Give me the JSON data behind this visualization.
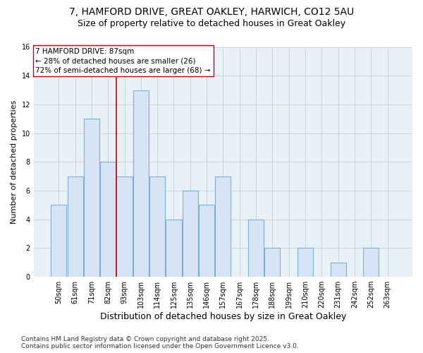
{
  "title_line1": "7, HAMFORD DRIVE, GREAT OAKLEY, HARWICH, CO12 5AU",
  "title_line2": "Size of property relative to detached houses in Great Oakley",
  "xlabel": "Distribution of detached houses by size in Great Oakley",
  "ylabel": "Number of detached properties",
  "bar_labels": [
    "50sqm",
    "61sqm",
    "71sqm",
    "82sqm",
    "93sqm",
    "103sqm",
    "114sqm",
    "125sqm",
    "135sqm",
    "146sqm",
    "157sqm",
    "167sqm",
    "178sqm",
    "188sqm",
    "199sqm",
    "210sqm",
    "220sqm",
    "231sqm",
    "242sqm",
    "252sqm",
    "263sqm"
  ],
  "bar_values": [
    5,
    7,
    11,
    8,
    7,
    13,
    7,
    4,
    6,
    5,
    7,
    0,
    4,
    2,
    0,
    2,
    0,
    1,
    0,
    2,
    0
  ],
  "bar_color": "#d6e4f5",
  "bar_edgecolor": "#7bafd4",
  "bar_linewidth": 0.8,
  "vline_x_index": 3.5,
  "vline_color": "#cc0000",
  "vline_linewidth": 1.2,
  "annotation_text_line1": "7 HAMFORD DRIVE: 87sqm",
  "annotation_text_line2": "← 28% of detached houses are smaller (26)",
  "annotation_text_line3": "72% of semi-detached houses are larger (68) →",
  "annotation_box_edgecolor": "#cc0000",
  "annotation_box_facecolor": "white",
  "annotation_fontsize": 7.5,
  "ylim": [
    0,
    16
  ],
  "yticks": [
    0,
    2,
    4,
    6,
    8,
    10,
    12,
    14,
    16
  ],
  "grid_color": "#cccccc",
  "background_color": "#ffffff",
  "plot_bg_color": "#e8f0f8",
  "footer_line1": "Contains HM Land Registry data © Crown copyright and database right 2025.",
  "footer_line2": "Contains public sector information licensed under the Open Government Licence v3.0.",
  "title_fontsize": 10,
  "subtitle_fontsize": 9,
  "xlabel_fontsize": 9,
  "ylabel_fontsize": 8,
  "tick_fontsize": 7,
  "footer_fontsize": 6.5
}
